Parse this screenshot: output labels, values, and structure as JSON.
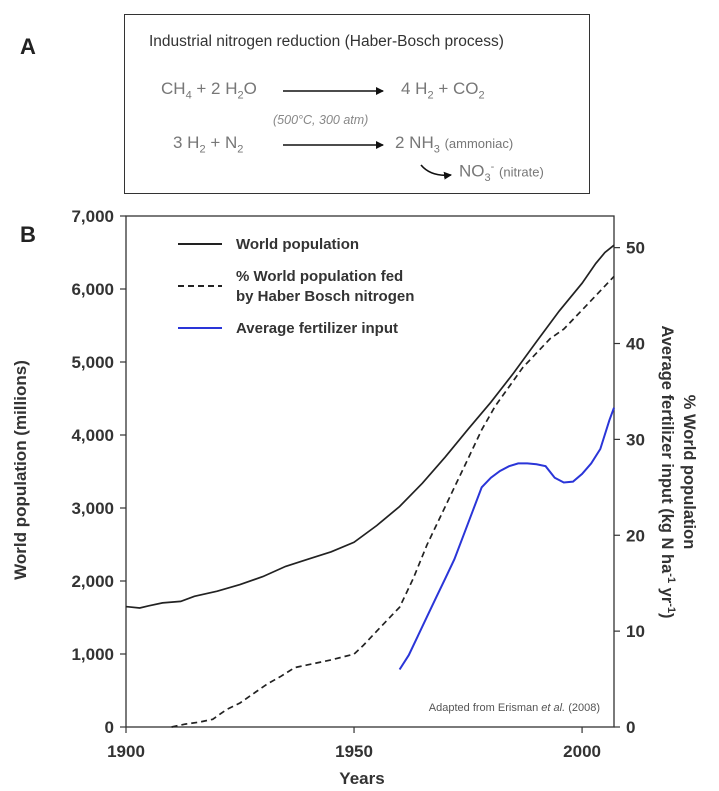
{
  "panel_a": {
    "letter": "A",
    "title": "Industrial nitrogen reduction (Haber-Bosch process)",
    "eq1": {
      "lhs": [
        "CH",
        "4",
        " + 2 H",
        "2",
        "O"
      ],
      "rhs": [
        "4 H",
        "2",
        " + CO",
        "2"
      ]
    },
    "conditions": "(500°C, 300 atm)",
    "eq2": {
      "lhs": [
        "3 H",
        "2",
        " + N",
        "2"
      ],
      "rhs": [
        "2 NH",
        "3"
      ],
      "rhs_note": "(ammoniac)"
    },
    "eq3": {
      "product": "NO",
      "sub": "3",
      "sup": "-",
      "note": "(nitrate)"
    }
  },
  "chart_data": {
    "panel_letter": "B",
    "type": "line",
    "xlabel": "Years",
    "xlim": [
      1900,
      2007
    ],
    "x_ticks": [
      1900,
      1950,
      2000
    ],
    "ylabel_left": "World population (millions)",
    "ylim_left": [
      0,
      7000
    ],
    "left_ticks": [
      "0",
      "1,000",
      "2,000",
      "3,000",
      "4,000",
      "5,000",
      "6,000",
      "7,000"
    ],
    "ylabel_right_1": "% World population",
    "ylabel_right_2": "Average fertilizer input (kg N ha",
    "ylabel_right_2_sup1": "-1",
    "ylabel_right_2_mid": " yr",
    "ylabel_right_2_sup2": "-1",
    "ylabel_right_2_end": ")",
    "ylim_right": [
      0,
      53.3
    ],
    "right_ticks": [
      0,
      10,
      20,
      30,
      40,
      50
    ],
    "grid": false,
    "legend_position": "top-left",
    "annotation": {
      "before": "Adapted from Erisman ",
      "italic": "et al.",
      "after": " (2008)"
    },
    "series": [
      {
        "name": "World population",
        "axis": "left",
        "style": "solid",
        "color": "#222222",
        "x": [
          1900,
          1903,
          1905,
          1908,
          1912,
          1915,
          1920,
          1925,
          1930,
          1935,
          1940,
          1945,
          1950,
          1955,
          1960,
          1965,
          1970,
          1975,
          1980,
          1985,
          1990,
          1995,
          2000,
          2003,
          2005,
          2007
        ],
        "y": [
          1650,
          1630,
          1660,
          1700,
          1720,
          1790,
          1860,
          1950,
          2060,
          2200,
          2300,
          2400,
          2530,
          2760,
          3020,
          3340,
          3700,
          4080,
          4450,
          4850,
          5280,
          5700,
          6080,
          6350,
          6500,
          6600
        ]
      },
      {
        "name": "% World population fed by Haber Bosch nitrogen",
        "legend_lines": [
          "% World population fed",
          "by Haber Bosch nitrogen"
        ],
        "axis": "right",
        "style": "dashed",
        "color": "#222222",
        "x": [
          1910,
          1913,
          1916,
          1919,
          1922,
          1925,
          1928,
          1931,
          1934,
          1937,
          1940,
          1945,
          1950,
          1952,
          1955,
          1958,
          1960,
          1963,
          1966,
          1969,
          1972,
          1975,
          1978,
          1981,
          1984,
          1987,
          1990,
          1993,
          1996,
          2000,
          2003,
          2007
        ],
        "y": [
          0,
          0.3,
          0.5,
          0.8,
          1.8,
          2.5,
          3.5,
          4.5,
          5.3,
          6.2,
          6.5,
          7.0,
          7.6,
          8.5,
          10.0,
          11.5,
          12.5,
          15.5,
          19.0,
          22.0,
          25.0,
          28.0,
          31.0,
          33.5,
          35.5,
          37.5,
          39.0,
          40.5,
          41.5,
          43.5,
          45.0,
          47.0
        ]
      },
      {
        "name": "Average fertilizer input",
        "axis": "right",
        "style": "solid",
        "color": "#2a35d8",
        "x": [
          1960,
          1962,
          1964,
          1966,
          1968,
          1970,
          1972,
          1974,
          1976,
          1978,
          1980,
          1982,
          1984,
          1986,
          1988,
          1990,
          1992,
          1994,
          1996,
          1998,
          2000,
          2002,
          2004,
          2006,
          2007
        ],
        "y": [
          6,
          7.5,
          9.5,
          11.5,
          13.5,
          15.5,
          17.5,
          20,
          22.5,
          25,
          26,
          26.7,
          27.2,
          27.5,
          27.5,
          27.4,
          27.2,
          26,
          25.5,
          25.6,
          26.4,
          27.5,
          29.0,
          32.0,
          33.3
        ]
      }
    ]
  }
}
